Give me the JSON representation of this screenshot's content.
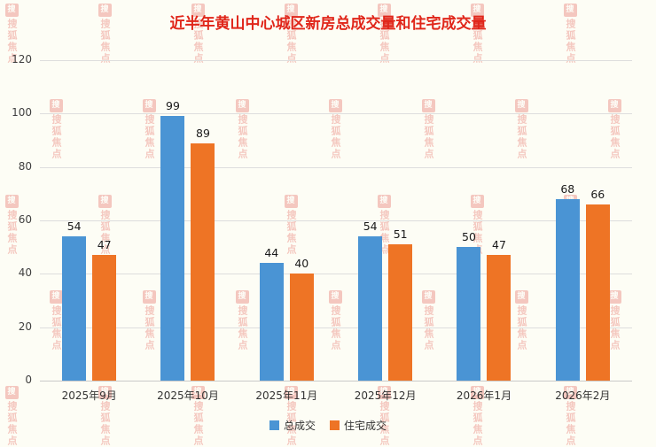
{
  "title": "近半年黄山中心城区新房总成交量和住宅成交量",
  "watermark": {
    "text": "搜狐焦点",
    "icon_glyph": "搜"
  },
  "chart_data": {
    "type": "bar",
    "title": "近半年黄山中心城区新房总成交量和住宅成交量",
    "categories": [
      "2025年9月",
      "2025年10月",
      "2025年11月",
      "2025年12月",
      "2026年1月",
      "2026年2月"
    ],
    "series": [
      {
        "name": "总成交",
        "color": "#4a94d4",
        "values": [
          54,
          99,
          44,
          54,
          50,
          68
        ]
      },
      {
        "name": "住宅成交",
        "color": "#ee7425",
        "values": [
          47,
          89,
          40,
          51,
          47,
          66
        ]
      }
    ],
    "ylim": [
      0,
      120
    ],
    "ytick_interval": 20,
    "yticks": [
      0,
      20,
      40,
      60,
      80,
      100,
      120
    ],
    "grid": true,
    "legend_position": "bottom",
    "data_labels": true
  },
  "colors": {
    "title": "#e0261a",
    "background": "#fdfdf5",
    "grid": "#dddddd",
    "axis_text": "#404040",
    "bar_label_text": "#1a1a1a",
    "watermark": "#df4035"
  }
}
